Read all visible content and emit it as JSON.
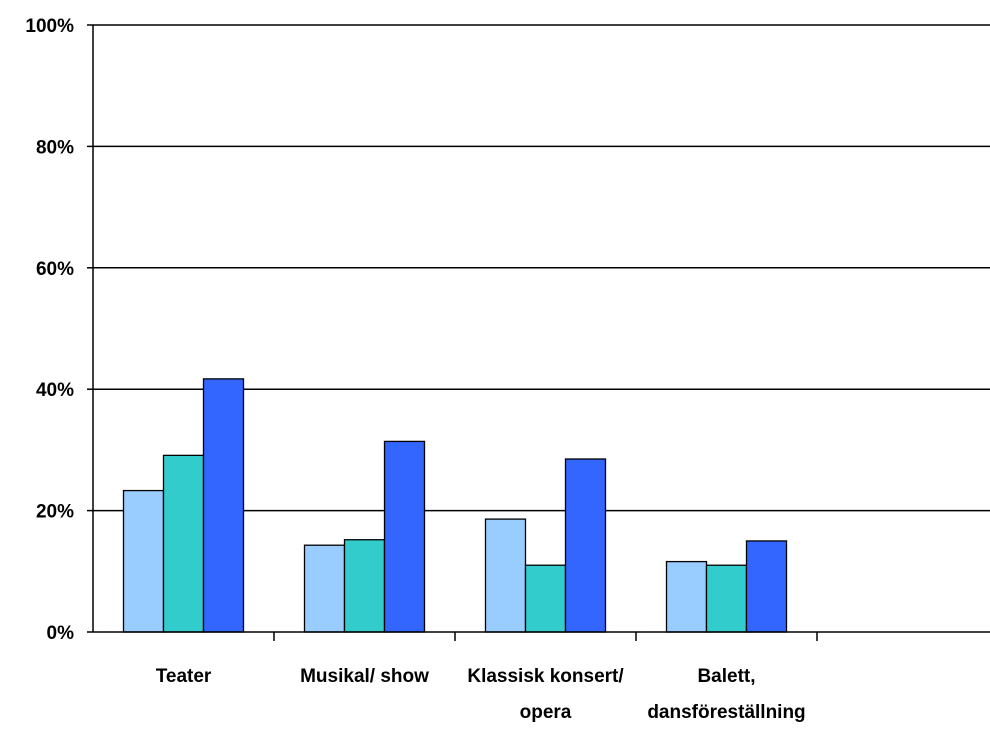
{
  "chart_data": {
    "type": "bar",
    "categories": [
      [
        "Teater"
      ],
      [
        "Musikal/ show"
      ],
      [
        "Klassisk konsert/",
        "opera"
      ],
      [
        "Balett,",
        "dansföreställning"
      ],
      [
        ""
      ]
    ],
    "series": [
      {
        "color": "#99ccff",
        "values": [
          23.3,
          14.3,
          18.6,
          11.6,
          null
        ]
      },
      {
        "color": "#33cccc",
        "values": [
          29.1,
          15.2,
          11.0,
          11.0,
          null
        ]
      },
      {
        "color": "#3366ff",
        "values": [
          41.7,
          31.4,
          28.5,
          15.0,
          null
        ]
      }
    ],
    "ylim": [
      0,
      100
    ],
    "yticks": [
      0,
      20,
      40,
      60,
      80,
      100
    ],
    "ytick_labels": [
      "0%",
      "20%",
      "40%",
      "60%",
      "80%",
      "100%"
    ],
    "title": "",
    "xlabel": "",
    "ylabel": "",
    "grid": true,
    "legend": "none"
  }
}
